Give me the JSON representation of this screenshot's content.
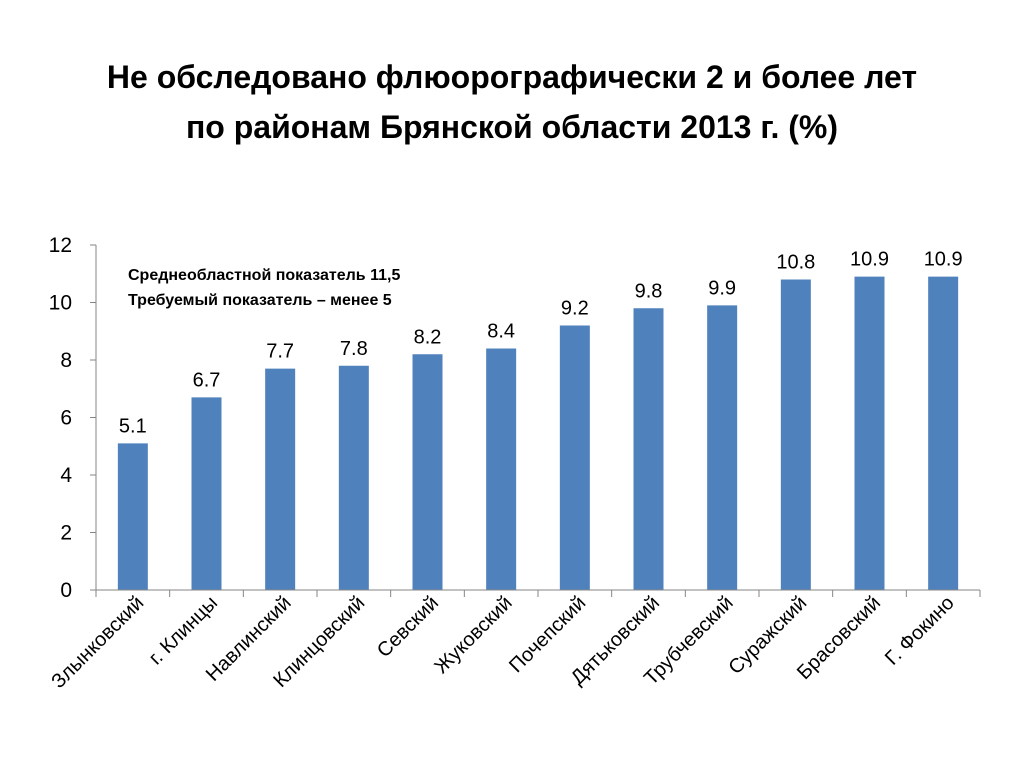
{
  "slide": {
    "title_line1": "Не обследовано флюорографически 2 и более лет",
    "title_line2": "по районам Брянской области 2013 г. (%)"
  },
  "annotation": {
    "line1": "Среднеобластной показатель 11,5",
    "line2": "Требуемый показатель – менее 5"
  },
  "colors": {
    "bar": "#4F81BD",
    "axis": "#868686"
  },
  "chart_data": {
    "type": "bar",
    "title": "",
    "xlabel": "",
    "ylabel": "",
    "ylim": [
      0,
      12
    ],
    "yticks": [
      0,
      2,
      4,
      6,
      8,
      10,
      12
    ],
    "grid": false,
    "legend": "none",
    "categories": [
      "Злынковский",
      "г. Клинцы",
      "Навлинский",
      "Клинцовский",
      "Севский",
      "Жуковский",
      "Почепский",
      "Дятьковский",
      "Трубчевский",
      "Суражский",
      "Брасовский",
      "Г. Фокино"
    ],
    "values": [
      5.1,
      6.7,
      7.7,
      7.8,
      8.2,
      8.4,
      9.2,
      9.8,
      9.9,
      10.8,
      10.9,
      10.9
    ]
  }
}
